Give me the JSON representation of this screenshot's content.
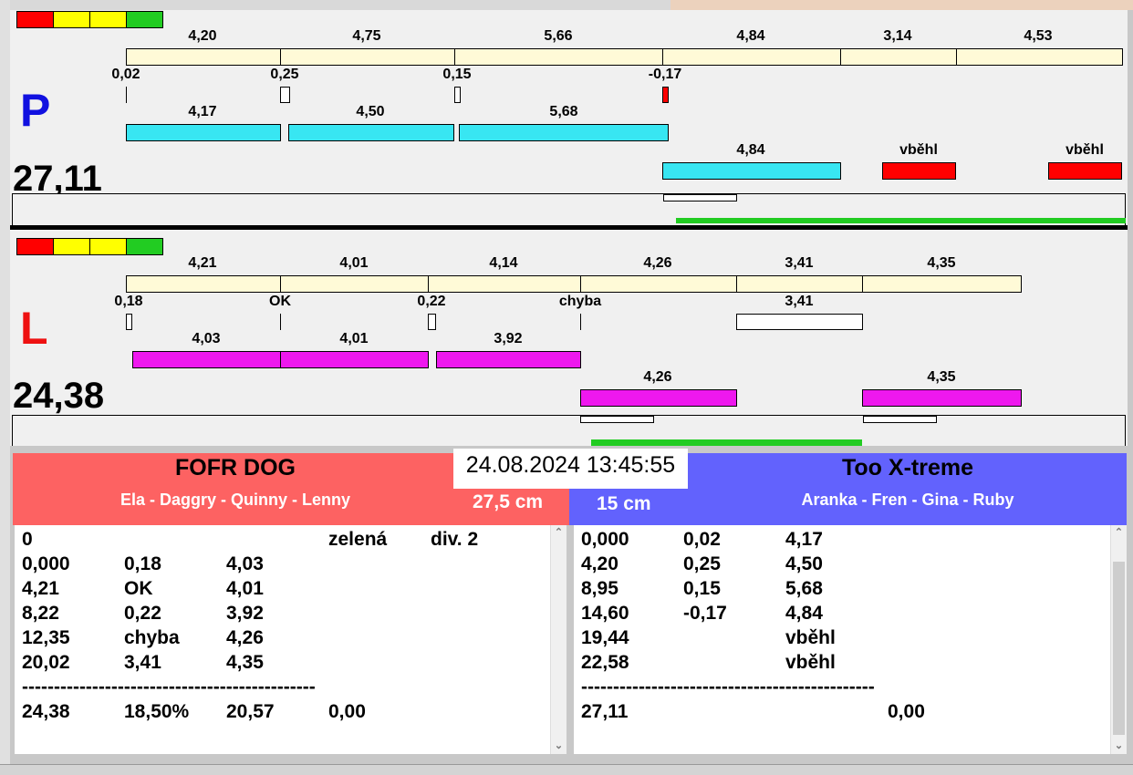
{
  "colors": {
    "red": "#ff0000",
    "yellow": "#ffff00",
    "green": "#22cc22",
    "cream": "#fffad7",
    "cyan": "#38e6f2",
    "magenta": "#ee18ee",
    "left_header": "#fd6262",
    "right_header": "#6262fd"
  },
  "lane_p": {
    "letter": "P",
    "total": "27,11",
    "lap_labels": [
      "4,20",
      "4,75",
      "5,66",
      "4,84",
      "3,14",
      "4,53"
    ],
    "offsets": [
      "0,02",
      "0,25",
      "0,15",
      "-0,17"
    ],
    "run_labels_1": [
      "4,17",
      "4,50",
      "5,68"
    ],
    "run_labels_2": [
      "4,84",
      "vběhl",
      "vběhl"
    ]
  },
  "lane_l": {
    "letter": "L",
    "total": "24,38",
    "lap_labels": [
      "4,21",
      "4,01",
      "4,14",
      "4,26",
      "3,41",
      "4,35"
    ],
    "offsets": [
      "0,18",
      "OK",
      "0,22",
      "chyba",
      "3,41"
    ],
    "run_labels_1": [
      "4,03",
      "4,01",
      "3,92"
    ],
    "run_labels_2": [
      "4,26",
      "4,35"
    ]
  },
  "datetime": "24.08.2024 13:45:55",
  "left_team": {
    "name": "FOFR DOG",
    "members": "Ela - Daggry - Quinny - Lenny",
    "height": "27,5 cm",
    "log": [
      [
        "0",
        "",
        "",
        "zelená",
        "div. 2"
      ],
      [
        "0,000",
        "0,18",
        "4,03",
        "",
        ""
      ],
      [
        "4,21",
        "OK",
        "4,01",
        "",
        ""
      ],
      [
        "8,22",
        "0,22",
        "3,92",
        "",
        ""
      ],
      [
        "12,35",
        "chyba",
        "4,26",
        "",
        ""
      ],
      [
        "20,02",
        "3,41",
        "4,35",
        "",
        ""
      ],
      [
        "----------------------------------------------",
        "",
        "",
        "",
        ""
      ],
      [
        "24,38",
        "18,50%",
        "20,57",
        "0,00",
        ""
      ]
    ]
  },
  "right_team": {
    "name": "Too X-treme",
    "members": "Aranka - Fren - Gina - Ruby",
    "height": "15 cm",
    "log": [
      [
        "0,000",
        "0,02",
        "4,17",
        ""
      ],
      [
        "4,20",
        "0,25",
        "4,50",
        ""
      ],
      [
        "8,95",
        "0,15",
        "5,68",
        ""
      ],
      [
        "14,60",
        "-0,17",
        "4,84",
        ""
      ],
      [
        "19,44",
        "",
        "vběhl",
        ""
      ],
      [
        "22,58",
        "",
        "vběhl",
        ""
      ],
      [
        "----------------------------------------------",
        "",
        "",
        ""
      ],
      [
        "27,11",
        "",
        "",
        "0,00"
      ]
    ]
  }
}
